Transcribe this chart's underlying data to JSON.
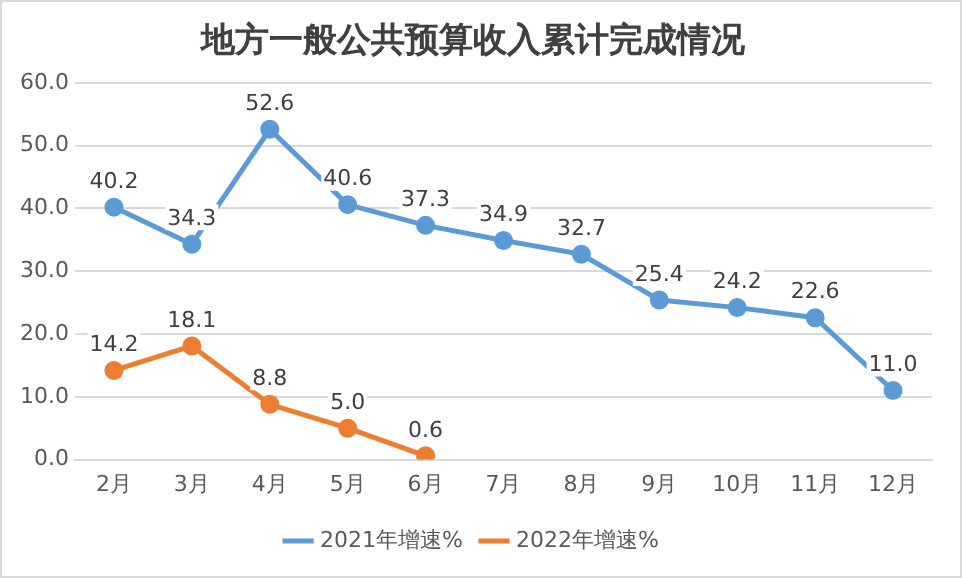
{
  "chart_data": {
    "type": "line",
    "title": "地方一般公共预算收入累计完成情况",
    "categories": [
      "2月",
      "3月",
      "4月",
      "5月",
      "6月",
      "7月",
      "8月",
      "9月",
      "10月",
      "11月",
      "12月"
    ],
    "series": [
      {
        "name": "2021年增速%",
        "color": "#5b9bd5",
        "values": [
          40.2,
          34.3,
          52.6,
          40.6,
          37.3,
          34.9,
          32.7,
          25.4,
          24.2,
          22.6,
          11.0
        ],
        "value_labels": [
          "40.2",
          "34.3",
          "52.6",
          "40.6",
          "37.3",
          "34.9",
          "32.7",
          "25.4",
          "24.2",
          "22.6",
          "11.0"
        ]
      },
      {
        "name": "2022年增速%",
        "color": "#ed7d31",
        "values": [
          14.2,
          18.1,
          8.8,
          5.0,
          0.6,
          null,
          null,
          null,
          null,
          null,
          null
        ],
        "value_labels": [
          "14.2",
          "18.1",
          "8.8",
          "5.0",
          "0.6",
          null,
          null,
          null,
          null,
          null,
          null
        ]
      }
    ],
    "ylim": [
      0,
      60
    ],
    "yticks": [
      {
        "value": 0,
        "label": "0.0"
      },
      {
        "value": 10,
        "label": "10.0"
      },
      {
        "value": 20,
        "label": "20.0"
      },
      {
        "value": 30,
        "label": "30.0"
      },
      {
        "value": 40,
        "label": "40.0"
      },
      {
        "value": 50,
        "label": "50.0"
      },
      {
        "value": 60,
        "label": "60.0"
      }
    ],
    "grid": "y",
    "legend": "bottom",
    "marker": "circle",
    "line_style": "solid"
  }
}
